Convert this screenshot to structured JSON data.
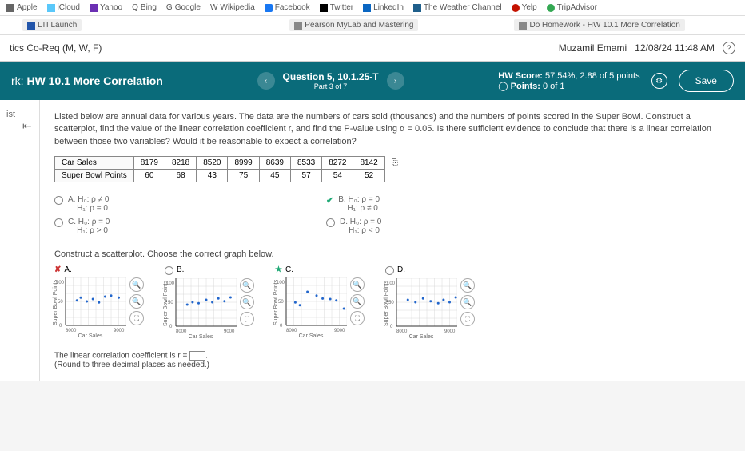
{
  "bookmarks_row1": [
    {
      "label": "Apple",
      "icon": "",
      "color": "#666"
    },
    {
      "label": "iCloud",
      "icon": "",
      "color": "#666"
    },
    {
      "label": "Yahoo",
      "icon": "",
      "color": "#6b2fb3"
    },
    {
      "label": "Bing",
      "icon": "Q",
      "color": "#666"
    },
    {
      "label": "Google",
      "icon": "G",
      "color": "#666"
    },
    {
      "label": "Wikipedia",
      "icon": "W",
      "color": "#666"
    },
    {
      "label": "Facebook",
      "icon": "",
      "color": "#1877f2"
    },
    {
      "label": "Twitter",
      "icon": "",
      "color": "#000"
    },
    {
      "label": "LinkedIn",
      "icon": "in",
      "color": "#0a66c2"
    },
    {
      "label": "The Weather Channel",
      "icon": "",
      "color": "#1f5f8b"
    },
    {
      "label": "Yelp",
      "icon": "",
      "color": "#c41200"
    },
    {
      "label": "TripAdvisor",
      "icon": "",
      "color": "#34a853"
    }
  ],
  "bookmarks_row2": [
    {
      "label": "LTI Launch",
      "color": "#2255aa"
    },
    {
      "label": "Pearson MyLab and Mastering",
      "color": "#666"
    },
    {
      "label": "Do Homework - HW 10.1 More Correlation",
      "color": "#666"
    }
  ],
  "course": {
    "name": "tics Co-Req (M, W, F)",
    "user": "Muzamil Emami",
    "datetime": "12/08/24 11:48 AM"
  },
  "hw": {
    "prefix": "rk:",
    "title": "HW 10.1 More Correlation",
    "question": "Question 5, 10.1.25-T",
    "part": "Part 3 of 7",
    "score_label": "HW Score:",
    "score_val": "57.54%, 2.88 of 5 points",
    "points_label": "Points:",
    "points_val": "0 of 1",
    "save": "Save"
  },
  "sidebar": {
    "label": "ist"
  },
  "question_text": "Listed below are annual data for various years. The data are the numbers of cars sold (thousands) and the numbers of points scored in the Super Bowl. Construct a scatterplot, find the value of the linear correlation coefficient r, and find the P-value using α = 0.05. Is there sufficient evidence to conclude that there is a linear correlation between those two variables? Would it be reasonable to expect a correlation?",
  "table": {
    "row1_label": "Car Sales",
    "row2_label": "Super Bowl Points",
    "row1": [
      "8179",
      "8218",
      "8520",
      "8999",
      "8639",
      "8533",
      "8272",
      "8142"
    ],
    "row2": [
      "60",
      "68",
      "43",
      "75",
      "45",
      "57",
      "54",
      "52"
    ]
  },
  "hypotheses": [
    {
      "letter": "A.",
      "h0": "H₀: ρ ≠ 0",
      "h1": "H₁: ρ = 0",
      "mark": "",
      "sel": false
    },
    {
      "letter": "B.",
      "h0": "H₀: ρ = 0",
      "h1": "H₁: ρ ≠ 0",
      "mark": "check",
      "sel": true
    },
    {
      "letter": "C.",
      "h0": "H₀: ρ = 0",
      "h1": "H₁: ρ > 0",
      "mark": "",
      "sel": false
    },
    {
      "letter": "D.",
      "h0": "H₀: ρ = 0",
      "h1": "H₁: ρ < 0",
      "mark": "",
      "sel": false
    }
  ],
  "construct_label": "Construct a scatterplot. Choose the correct graph below.",
  "plots": {
    "ylabel": "Super Bowl Points",
    "xlabel": "Car Sales",
    "xmin": "8000",
    "xmax": "9000",
    "ytick1": "50",
    "ytick2": "100",
    "grid_color": "#d8d8d8",
    "point_color": "#2266cc",
    "axis_color": "#333",
    "options": [
      {
        "letter": "A.",
        "mark": "wrong",
        "points": [
          [
            15,
            52
          ],
          [
            20,
            58
          ],
          [
            28,
            50
          ],
          [
            36,
            55
          ],
          [
            44,
            48
          ],
          [
            52,
            60
          ],
          [
            60,
            62
          ],
          [
            70,
            58
          ]
        ]
      },
      {
        "letter": "B.",
        "mark": "",
        "points": [
          [
            15,
            45
          ],
          [
            22,
            50
          ],
          [
            30,
            48
          ],
          [
            40,
            55
          ],
          [
            48,
            50
          ],
          [
            56,
            58
          ],
          [
            64,
            52
          ],
          [
            72,
            60
          ]
        ]
      },
      {
        "letter": "C.",
        "mark": "star",
        "points": [
          [
            12,
            48
          ],
          [
            18,
            42
          ],
          [
            28,
            70
          ],
          [
            40,
            62
          ],
          [
            48,
            56
          ],
          [
            58,
            55
          ],
          [
            66,
            52
          ],
          [
            76,
            35
          ]
        ]
      },
      {
        "letter": "D.",
        "mark": "",
        "points": [
          [
            15,
            55
          ],
          [
            25,
            50
          ],
          [
            35,
            58
          ],
          [
            45,
            52
          ],
          [
            55,
            48
          ],
          [
            62,
            55
          ],
          [
            70,
            50
          ],
          [
            78,
            60
          ]
        ]
      }
    ]
  },
  "bottom": {
    "line1": "The linear correlation coefficient is r = ",
    "line2": "(Round to three decimal places as needed.)"
  }
}
